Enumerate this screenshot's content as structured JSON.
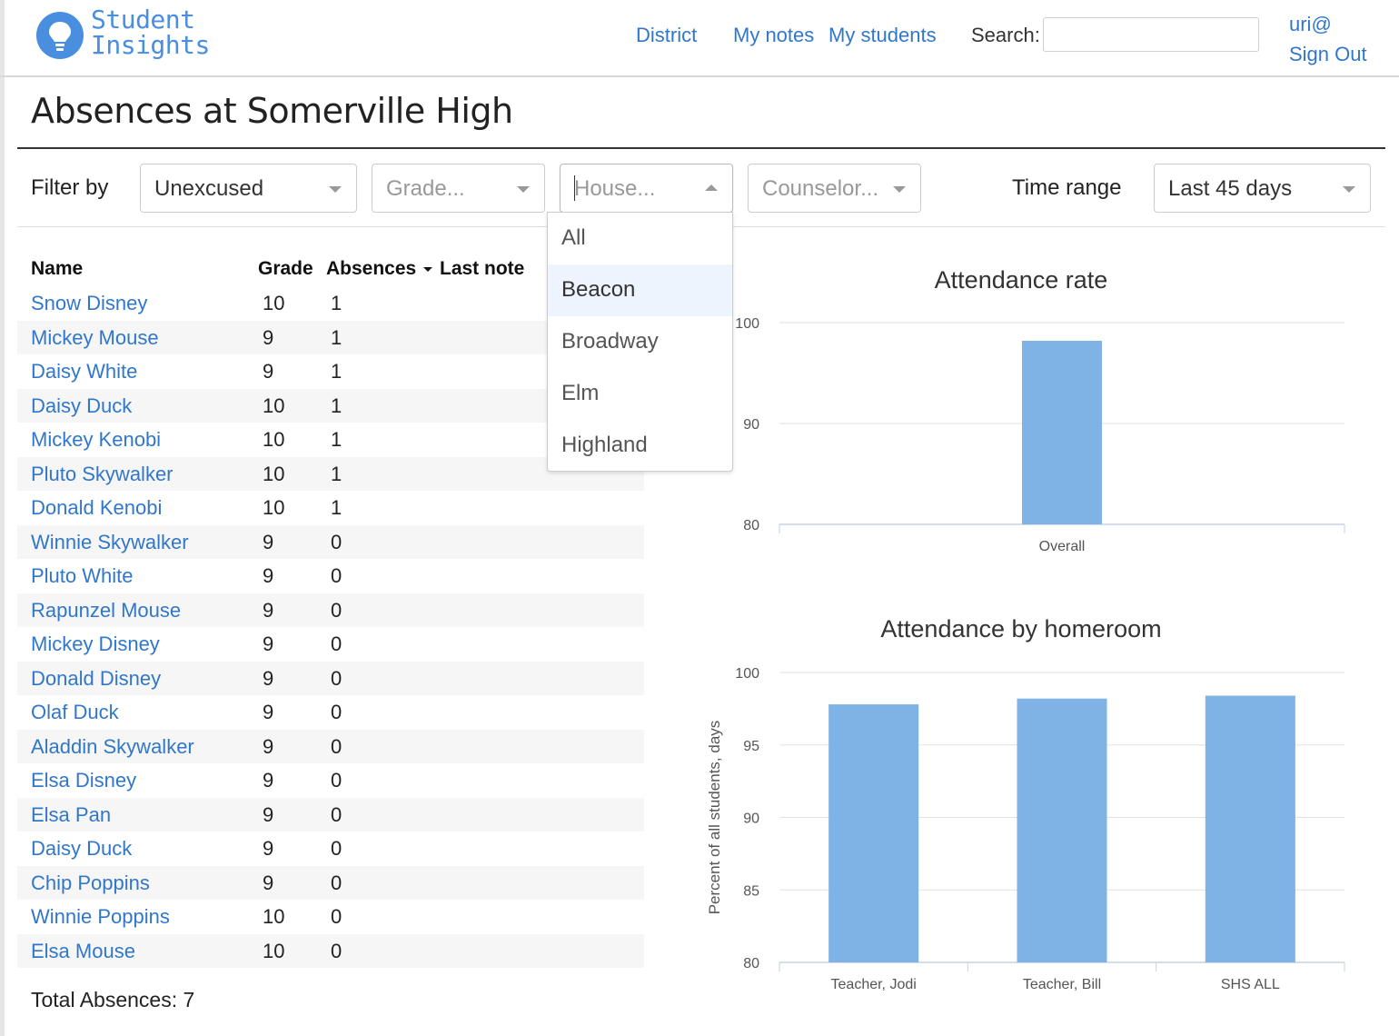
{
  "header": {
    "logo_line1": "Student",
    "logo_line2": "Insights",
    "nav": {
      "district": "District",
      "my_notes": "My notes",
      "my_students": "My students"
    },
    "search_label": "Search:",
    "search_value": "",
    "user": "uri@",
    "sign_out": "Sign Out"
  },
  "page": {
    "title": "Absences at Somerville High"
  },
  "filters": {
    "label": "Filter by",
    "type_value": "Unexcused",
    "grade_placeholder": "Grade...",
    "house_placeholder": "House...",
    "counselor_placeholder": "Counselor...",
    "time_label": "Time range",
    "time_value": "Last 45 days",
    "house_menu": {
      "options": [
        "All",
        "Beacon",
        "Broadway",
        "Elm",
        "Highland"
      ],
      "focused": "Beacon"
    }
  },
  "table": {
    "headers": {
      "name": "Name",
      "grade": "Grade",
      "absences": "Absences",
      "last_note": "Last note"
    },
    "rows": [
      {
        "name": "Snow Disney",
        "grade": "10",
        "absences": "1"
      },
      {
        "name": "Mickey Mouse",
        "grade": "9",
        "absences": "1"
      },
      {
        "name": "Daisy White",
        "grade": "9",
        "absences": "1"
      },
      {
        "name": "Daisy Duck",
        "grade": "10",
        "absences": "1"
      },
      {
        "name": "Mickey Kenobi",
        "grade": "10",
        "absences": "1"
      },
      {
        "name": "Pluto Skywalker",
        "grade": "10",
        "absences": "1"
      },
      {
        "name": "Donald Kenobi",
        "grade": "10",
        "absences": "1"
      },
      {
        "name": "Winnie Skywalker",
        "grade": "9",
        "absences": "0"
      },
      {
        "name": "Pluto White",
        "grade": "9",
        "absences": "0"
      },
      {
        "name": "Rapunzel Mouse",
        "grade": "9",
        "absences": "0"
      },
      {
        "name": "Mickey Disney",
        "grade": "9",
        "absences": "0"
      },
      {
        "name": "Donald Disney",
        "grade": "9",
        "absences": "0"
      },
      {
        "name": "Olaf Duck",
        "grade": "9",
        "absences": "0"
      },
      {
        "name": "Aladdin Skywalker",
        "grade": "9",
        "absences": "0"
      },
      {
        "name": "Elsa Disney",
        "grade": "9",
        "absences": "0"
      },
      {
        "name": "Elsa Pan",
        "grade": "9",
        "absences": "0"
      },
      {
        "name": "Daisy Duck",
        "grade": "9",
        "absences": "0"
      },
      {
        "name": "Chip Poppins",
        "grade": "9",
        "absences": "0"
      },
      {
        "name": "Winnie Poppins",
        "grade": "10",
        "absences": "0"
      },
      {
        "name": "Elsa Mouse",
        "grade": "10",
        "absences": "0"
      }
    ],
    "total": "Total Absences: 7"
  },
  "colors": {
    "link": "#3177c9",
    "bar": "#7fb2e5",
    "logo": "#4a8ee0"
  },
  "chart_data": [
    {
      "type": "bar",
      "title": "Attendance rate",
      "categories": [
        "Overall"
      ],
      "values": [
        98.2
      ],
      "ylim": [
        80,
        100
      ],
      "yticks": [
        "80",
        "90",
        "100"
      ],
      "xlabel": "",
      "ylabel": "",
      "grid": true
    },
    {
      "type": "bar",
      "title": "Attendance by homeroom",
      "categories": [
        "Teacher, Jodi",
        "Teacher, Bill",
        "SHS ALL"
      ],
      "values": [
        97.8,
        98.2,
        98.4
      ],
      "ylim": [
        80,
        100
      ],
      "yticks": [
        "80",
        "85",
        "90",
        "95",
        "100"
      ],
      "xlabel": "",
      "ylabel": "Percent of all students, days",
      "grid": true
    }
  ]
}
